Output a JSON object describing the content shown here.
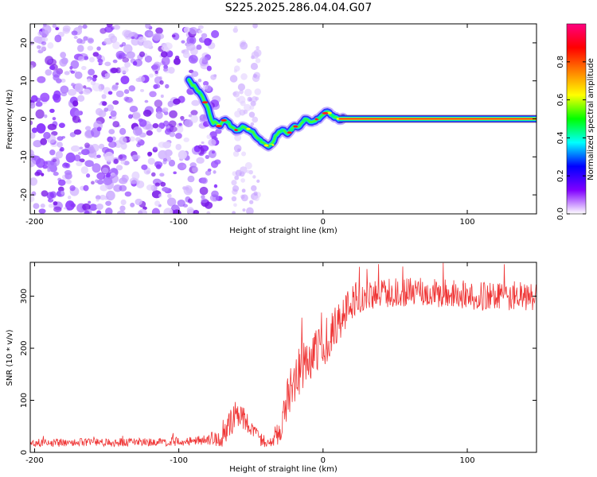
{
  "title": "S225.2025.286.04.04.G07",
  "chart_data": [
    {
      "type": "heatmap",
      "name": "spectrogram",
      "xlabel": "Height of straight line (km)",
      "ylabel": "Frequency (Hz)",
      "xlim": [
        -203,
        148
      ],
      "ylim": [
        -25,
        25
      ],
      "xticks": [
        -200,
        -100,
        0,
        100
      ],
      "yticks": [
        -20,
        -10,
        0,
        10,
        20
      ],
      "noise_region_x": [
        -203,
        -78
      ],
      "secondary_noise_band_x": [
        -62,
        -45
      ],
      "ridge": {
        "x": [
          -93,
          -88,
          -84,
          -80,
          -77,
          -74,
          -72,
          -68,
          -64,
          -60,
          -55,
          -50,
          -45,
          -40,
          -36,
          -32,
          -28,
          -24,
          -20,
          -16,
          -12,
          -8,
          -4,
          0,
          3,
          6,
          10,
          15,
          148
        ],
        "y": [
          10,
          8,
          6,
          3,
          -1,
          -1,
          -2,
          0,
          -2,
          -3,
          -2,
          -3,
          -5,
          -7,
          -7,
          -4,
          -3,
          -4,
          -2,
          -2,
          0,
          -1,
          0,
          1,
          2,
          1,
          0,
          0,
          0
        ]
      },
      "colorbar": {
        "label": "Normalized spectral amplitude",
        "range": [
          0,
          1
        ],
        "ticks": [
          "0.0",
          "0.2",
          "0.4",
          "0.6",
          "0.8"
        ],
        "colors": [
          "#ffffff",
          "#8000ff",
          "#0000ff",
          "#00ffff",
          "#00ff00",
          "#ffff00",
          "#ff8000",
          "#ff0000",
          "#ff0080"
        ]
      }
    },
    {
      "type": "line",
      "name": "snr",
      "xlabel": "Height of straight line (km)",
      "ylabel": "SNR (10 * v/v)",
      "xlim": [
        -203,
        148
      ],
      "ylim": [
        0,
        365
      ],
      "xticks": [
        -200,
        -100,
        0,
        100
      ],
      "yticks": [
        0,
        100,
        200,
        300
      ],
      "color": "#ef3535",
      "trend": {
        "x": [
          -203,
          -150,
          -100,
          -80,
          -70,
          -62,
          -58,
          -50,
          -42,
          -36,
          -30,
          -24,
          -18,
          -10,
          -2,
          6,
          14,
          22,
          30,
          40,
          50,
          70,
          90,
          110,
          130,
          148
        ],
        "y": [
          18,
          19,
          20,
          24,
          30,
          65,
          80,
          45,
          22,
          20,
          40,
          110,
          150,
          180,
          200,
          230,
          265,
          295,
          300,
          305,
          308,
          308,
          305,
          300,
          300,
          298
        ]
      },
      "noise_amplitude": {
        "x": [
          -203,
          -100,
          -80,
          -62,
          -50,
          -36,
          -30,
          -20,
          0,
          20,
          40,
          148
        ],
        "y": [
          8,
          8,
          10,
          30,
          18,
          10,
          35,
          45,
          45,
          35,
          28,
          28
        ]
      }
    }
  ]
}
